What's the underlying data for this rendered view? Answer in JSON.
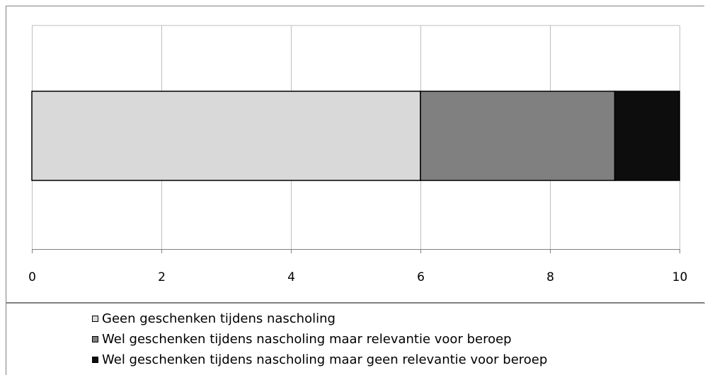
{
  "chart_data": {
    "type": "bar",
    "orientation": "horizontal",
    "stacked": true,
    "categories": [
      ""
    ],
    "series": [
      {
        "name": "Geen geschenken tijdens nascholing",
        "values": [
          6
        ],
        "color": "#d9d9d9"
      },
      {
        "name": "Wel geschenken tijdens nascholing maar relevantie voor beroep",
        "values": [
          3
        ],
        "color": "#808080"
      },
      {
        "name": "Wel geschenken tijdens nascholing maar geen relevantie voor beroep",
        "values": [
          1
        ],
        "color": "#0d0d0d"
      }
    ],
    "xlim": [
      0,
      10
    ],
    "xticks": [
      "0",
      "2",
      "4",
      "6",
      "8",
      "10"
    ],
    "grid": "vertical",
    "legend_position": "bottom",
    "title": "",
    "xlabel": "",
    "ylabel": ""
  }
}
